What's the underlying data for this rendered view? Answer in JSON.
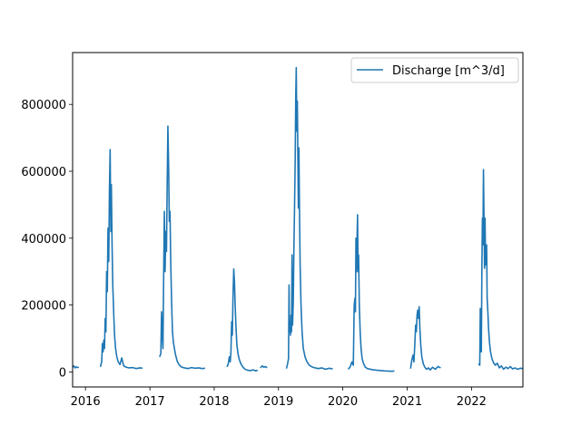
{
  "chart_data": {
    "type": "line",
    "title": "",
    "xlabel": "",
    "ylabel": "",
    "xlim": [
      "2015-10-20",
      "2022-10-20"
    ],
    "ylim": [
      -45000,
      955000
    ],
    "x_ticks": [
      "2016",
      "2017",
      "2018",
      "2019",
      "2020",
      "2021",
      "2022"
    ],
    "y_ticks": [
      0,
      200000,
      400000,
      600000,
      800000
    ],
    "y_tick_labels": [
      "0",
      "200000",
      "400000",
      "600000",
      "800000"
    ],
    "grid": false,
    "legend_position": "top-right",
    "series": [
      {
        "name": "Discharge [m^3/d]",
        "color": "#1f77b4",
        "segments": [
          [
            [
              "2015-10-20",
              14000
            ],
            [
              "2015-10-27",
              18000
            ],
            [
              "2015-11-03",
              12000
            ],
            [
              "2015-11-10",
              15000
            ],
            [
              "2015-11-17",
              13000
            ],
            [
              "2015-11-24",
              14000
            ]
          ],
          [
            [
              "2016-03-26",
              15000
            ],
            [
              "2016-04-02",
              30000
            ],
            [
              "2016-04-06",
              85000
            ],
            [
              "2016-04-10",
              60000
            ],
            [
              "2016-04-14",
              95000
            ],
            [
              "2016-04-18",
              70000
            ],
            [
              "2016-04-22",
              160000
            ],
            [
              "2016-04-26",
              120000
            ],
            [
              "2016-04-30",
              300000
            ],
            [
              "2016-05-04",
              240000
            ],
            [
              "2016-05-08",
              430000
            ],
            [
              "2016-05-12",
              330000
            ],
            [
              "2016-05-16",
              540000
            ],
            [
              "2016-05-20",
              665000
            ],
            [
              "2016-05-24",
              420000
            ],
            [
              "2016-05-27",
              560000
            ],
            [
              "2016-05-31",
              380000
            ],
            [
              "2016-06-04",
              260000
            ],
            [
              "2016-06-09",
              180000
            ],
            [
              "2016-06-14",
              110000
            ],
            [
              "2016-06-20",
              70000
            ],
            [
              "2016-06-27",
              45000
            ],
            [
              "2016-07-05",
              30000
            ],
            [
              "2016-07-15",
              22000
            ],
            [
              "2016-07-25",
              42000
            ],
            [
              "2016-08-05",
              18000
            ],
            [
              "2016-08-20",
              14000
            ],
            [
              "2016-09-05",
              12000
            ],
            [
              "2016-09-25",
              13000
            ],
            [
              "2016-10-15",
              10000
            ],
            [
              "2016-11-05",
              12000
            ],
            [
              "2016-11-20",
              11000
            ]
          ],
          [
            [
              "2017-02-25",
              45000
            ],
            [
              "2017-03-04",
              55000
            ],
            [
              "2017-03-08",
              180000
            ],
            [
              "2017-03-12",
              120000
            ],
            [
              "2017-03-16",
              70000
            ],
            [
              "2017-03-20",
              290000
            ],
            [
              "2017-03-24",
              480000
            ],
            [
              "2017-03-28",
              300000
            ],
            [
              "2017-04-01",
              420000
            ],
            [
              "2017-04-05",
              360000
            ],
            [
              "2017-04-09",
              560000
            ],
            [
              "2017-04-13",
              735000
            ],
            [
              "2017-04-17",
              620000
            ],
            [
              "2017-04-21",
              450000
            ],
            [
              "2017-04-25",
              480000
            ],
            [
              "2017-04-29",
              330000
            ],
            [
              "2017-05-04",
              210000
            ],
            [
              "2017-05-09",
              120000
            ],
            [
              "2017-05-14",
              90000
            ],
            [
              "2017-05-20",
              70000
            ],
            [
              "2017-05-27",
              50000
            ],
            [
              "2017-06-05",
              32000
            ],
            [
              "2017-06-15",
              22000
            ],
            [
              "2017-06-28",
              15000
            ],
            [
              "2017-07-15",
              12000
            ],
            [
              "2017-08-05",
              10000
            ],
            [
              "2017-08-25",
              13000
            ],
            [
              "2017-09-15",
              11000
            ],
            [
              "2017-10-05",
              12000
            ],
            [
              "2017-10-25",
              10000
            ],
            [
              "2017-11-10",
              11000
            ]
          ],
          [
            [
              "2018-03-15",
              15000
            ],
            [
              "2018-03-22",
              25000
            ],
            [
              "2018-03-28",
              45000
            ],
            [
              "2018-04-02",
              30000
            ],
            [
              "2018-04-06",
              60000
            ],
            [
              "2018-04-10",
              150000
            ],
            [
              "2018-04-14",
              110000
            ],
            [
              "2018-04-18",
              230000
            ],
            [
              "2018-04-22",
              308000
            ],
            [
              "2018-04-26",
              270000
            ],
            [
              "2018-04-30",
              200000
            ],
            [
              "2018-05-05",
              130000
            ],
            [
              "2018-05-10",
              80000
            ],
            [
              "2018-05-16",
              55000
            ],
            [
              "2018-05-23",
              38000
            ],
            [
              "2018-06-01",
              25000
            ],
            [
              "2018-06-12",
              15000
            ],
            [
              "2018-06-25",
              8000
            ],
            [
              "2018-07-10",
              5000
            ],
            [
              "2018-07-25",
              4000
            ],
            [
              "2018-08-10",
              6000
            ],
            [
              "2018-08-25",
              3000
            ],
            [
              "2018-09-05",
              5000
            ]
          ],
          [
            [
              "2018-09-20",
              12000
            ],
            [
              "2018-10-01",
              18000
            ],
            [
              "2018-10-10",
              14000
            ],
            [
              "2018-10-20",
              16000
            ],
            [
              "2018-10-28",
              12000
            ]
          ],
          [
            [
              "2019-02-15",
              10000
            ],
            [
              "2019-02-22",
              25000
            ],
            [
              "2019-02-27",
              40000
            ],
            [
              "2019-03-02",
              260000
            ],
            [
              "2019-03-04",
              120000
            ],
            [
              "2019-03-07",
              150000
            ],
            [
              "2019-03-10",
              110000
            ],
            [
              "2019-03-13",
              170000
            ],
            [
              "2019-03-16",
              120000
            ],
            [
              "2019-03-19",
              350000
            ],
            [
              "2019-03-22",
              140000
            ],
            [
              "2019-03-26",
              210000
            ],
            [
              "2019-03-30",
              380000
            ],
            [
              "2019-04-03",
              520000
            ],
            [
              "2019-04-06",
              640000
            ],
            [
              "2019-04-09",
              820000
            ],
            [
              "2019-04-12",
              910000
            ],
            [
              "2019-04-15",
              720000
            ],
            [
              "2019-04-18",
              810000
            ],
            [
              "2019-04-21",
              650000
            ],
            [
              "2019-04-24",
              490000
            ],
            [
              "2019-04-27",
              670000
            ],
            [
              "2019-04-30",
              500000
            ],
            [
              "2019-05-04",
              320000
            ],
            [
              "2019-05-09",
              200000
            ],
            [
              "2019-05-15",
              120000
            ],
            [
              "2019-05-22",
              70000
            ],
            [
              "2019-06-01",
              45000
            ],
            [
              "2019-06-12",
              30000
            ],
            [
              "2019-06-25",
              20000
            ],
            [
              "2019-07-10",
              15000
            ],
            [
              "2019-07-28",
              12000
            ],
            [
              "2019-08-15",
              10000
            ],
            [
              "2019-09-05",
              12000
            ],
            [
              "2019-09-25",
              8000
            ],
            [
              "2019-10-15",
              11000
            ],
            [
              "2019-11-05",
              9000
            ]
          ],
          [
            [
              "2020-02-01",
              8000
            ],
            [
              "2020-02-12",
              15000
            ],
            [
              "2020-02-22",
              30000
            ],
            [
              "2020-03-01",
              20000
            ],
            [
              "2020-03-06",
              200000
            ],
            [
              "2020-03-10",
              220000
            ],
            [
              "2020-03-13",
              180000
            ],
            [
              "2020-03-16",
              400000
            ],
            [
              "2020-03-19",
              300000
            ],
            [
              "2020-03-22",
              390000
            ],
            [
              "2020-03-25",
              470000
            ],
            [
              "2020-03-28",
              300000
            ],
            [
              "2020-03-31",
              350000
            ],
            [
              "2020-04-04",
              200000
            ],
            [
              "2020-04-09",
              120000
            ],
            [
              "2020-04-14",
              70000
            ],
            [
              "2020-04-20",
              40000
            ],
            [
              "2020-04-28",
              25000
            ],
            [
              "2020-05-08",
              14000
            ],
            [
              "2020-05-20",
              10000
            ],
            [
              "2020-06-05",
              8000
            ],
            [
              "2020-06-25",
              6000
            ],
            [
              "2020-07-15",
              5000
            ],
            [
              "2020-08-05",
              4000
            ],
            [
              "2020-08-25",
              3000
            ],
            [
              "2020-09-15",
              2500
            ],
            [
              "2020-10-05",
              2000
            ],
            [
              "2020-10-20",
              3000
            ]
          ],
          [
            [
              "2021-01-20",
              10000
            ],
            [
              "2021-01-27",
              35000
            ],
            [
              "2021-02-03",
              50000
            ],
            [
              "2021-02-08",
              30000
            ],
            [
              "2021-02-13",
              80000
            ],
            [
              "2021-02-18",
              140000
            ],
            [
              "2021-02-22",
              120000
            ],
            [
              "2021-02-26",
              170000
            ],
            [
              "2021-03-02",
              185000
            ],
            [
              "2021-03-06",
              160000
            ],
            [
              "2021-03-10",
              195000
            ],
            [
              "2021-03-14",
              130000
            ],
            [
              "2021-03-19",
              80000
            ],
            [
              "2021-03-25",
              45000
            ],
            [
              "2021-04-02",
              25000
            ],
            [
              "2021-04-10",
              15000
            ],
            [
              "2021-04-20",
              8000
            ],
            [
              "2021-05-02",
              12000
            ],
            [
              "2021-05-12",
              6000
            ],
            [
              "2021-05-25",
              14000
            ],
            [
              "2021-06-10",
              8000
            ],
            [
              "2021-06-25",
              16000
            ],
            [
              "2021-07-10",
              12000
            ]
          ],
          [
            [
              "2022-02-10",
              25000
            ],
            [
              "2022-02-17",
              20000
            ],
            [
              "2022-02-20",
              190000
            ],
            [
              "2022-02-23",
              150000
            ],
            [
              "2022-02-26",
              60000
            ],
            [
              "2022-03-01",
              300000
            ],
            [
              "2022-03-04",
              460000
            ],
            [
              "2022-03-07",
              380000
            ],
            [
              "2022-03-10",
              605000
            ],
            [
              "2022-03-13",
              470000
            ],
            [
              "2022-03-16",
              310000
            ],
            [
              "2022-03-19",
              460000
            ],
            [
              "2022-03-22",
              320000
            ],
            [
              "2022-03-25",
              350000
            ],
            [
              "2022-03-28",
              380000
            ],
            [
              "2022-03-31",
              220000
            ],
            [
              "2022-04-04",
              180000
            ],
            [
              "2022-04-08",
              130000
            ],
            [
              "2022-04-13",
              90000
            ],
            [
              "2022-04-19",
              60000
            ],
            [
              "2022-04-27",
              40000
            ],
            [
              "2022-05-06",
              28000
            ],
            [
              "2022-05-16",
              20000
            ],
            [
              "2022-05-28",
              26000
            ],
            [
              "2022-06-08",
              12000
            ],
            [
              "2022-06-20",
              18000
            ],
            [
              "2022-07-02",
              8000
            ],
            [
              "2022-07-15",
              14000
            ],
            [
              "2022-07-28",
              10000
            ],
            [
              "2022-08-10",
              16000
            ],
            [
              "2022-08-22",
              9000
            ],
            [
              "2022-09-05",
              12000
            ],
            [
              "2022-09-20",
              8000
            ],
            [
              "2022-10-05",
              11000
            ],
            [
              "2022-10-20",
              10000
            ]
          ]
        ]
      }
    ]
  }
}
